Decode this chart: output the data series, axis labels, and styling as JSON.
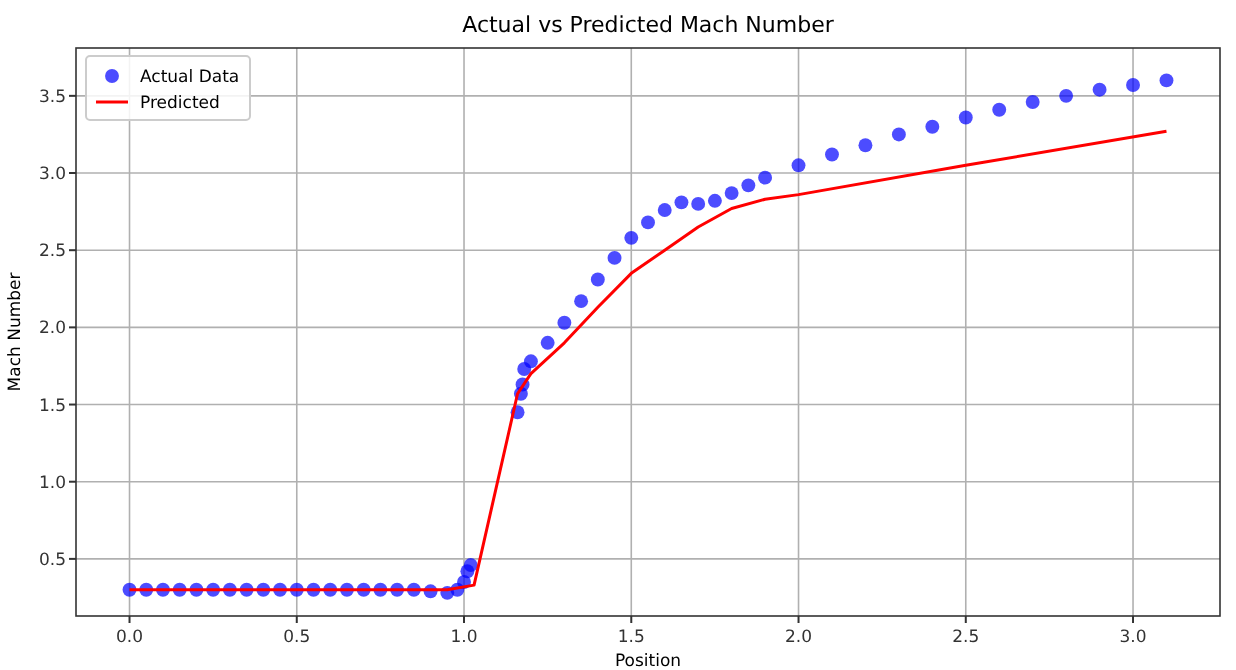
{
  "chart_data": {
    "type": "scatter",
    "title": "Actual vs Predicted Mach Number",
    "xlabel": "Position",
    "ylabel": "Mach Number",
    "xlim": [
      -0.16,
      3.26
    ],
    "ylim": [
      0.13,
      3.81
    ],
    "xticks": [
      {
        "value": 0,
        "label": "0.0"
      },
      0.5,
      {
        "value": 1,
        "label": "1.0"
      },
      1.5,
      {
        "value": 2,
        "label": "2.0"
      },
      2.5,
      {
        "value": 3,
        "label": "3.0"
      }
    ],
    "yticks": [
      0.5,
      {
        "value": 1,
        "label": "1.0"
      },
      1.5,
      {
        "value": 2,
        "label": "2.0"
      },
      2.5,
      {
        "value": 3,
        "label": "3.0"
      },
      3.5
    ],
    "grid": true,
    "legend": "top left",
    "series": [
      {
        "name": "Actual Data",
        "marker": "circle",
        "color": "#0000ff",
        "x": [
          0,
          0.05,
          0.1,
          0.15,
          0.2,
          0.25,
          0.3,
          0.35,
          0.4,
          0.45,
          0.5,
          0.55,
          0.6,
          0.65,
          0.7,
          0.75,
          0.8,
          0.85,
          0.9,
          0.95,
          0.98,
          1.0,
          1.01,
          1.02,
          1.16,
          1.17,
          1.175,
          1.18,
          1.2,
          1.25,
          1.3,
          1.35,
          1.4,
          1.45,
          1.5,
          1.55,
          1.6,
          1.65,
          1.7,
          1.75,
          1.8,
          1.85,
          1.9,
          2.0,
          2.1,
          2.2,
          2.3,
          2.4,
          2.5,
          2.6,
          2.7,
          2.8,
          2.9,
          3.0,
          3.1
        ],
        "values": [
          0.3,
          0.3,
          0.3,
          0.3,
          0.3,
          0.3,
          0.3,
          0.3,
          0.3,
          0.3,
          0.3,
          0.3,
          0.3,
          0.3,
          0.3,
          0.3,
          0.3,
          0.3,
          0.29,
          0.28,
          0.3,
          0.35,
          0.42,
          0.46,
          1.45,
          1.57,
          1.63,
          1.73,
          1.78,
          1.9,
          2.03,
          2.17,
          2.31,
          2.45,
          2.58,
          2.68,
          2.76,
          2.81,
          2.8,
          2.82,
          2.87,
          2.92,
          2.97,
          3.05,
          3.12,
          3.18,
          3.25,
          3.3,
          3.36,
          3.41,
          3.46,
          3.5,
          3.54,
          3.57,
          3.6
        ]
      },
      {
        "name": "Predicted",
        "type": "line",
        "marker": "none",
        "line_style": "solid",
        "color": "#ff0000",
        "x": [
          0,
          0.95,
          1.03,
          1.16,
          1.2,
          1.3,
          1.4,
          1.5,
          1.6,
          1.7,
          1.8,
          1.9,
          2.0,
          2.5,
          3.1
        ],
        "values": [
          0.3,
          0.3,
          0.33,
          1.57,
          1.7,
          1.9,
          2.13,
          2.35,
          2.5,
          2.65,
          2.77,
          2.83,
          2.86,
          3.05,
          3.27
        ]
      }
    ]
  }
}
